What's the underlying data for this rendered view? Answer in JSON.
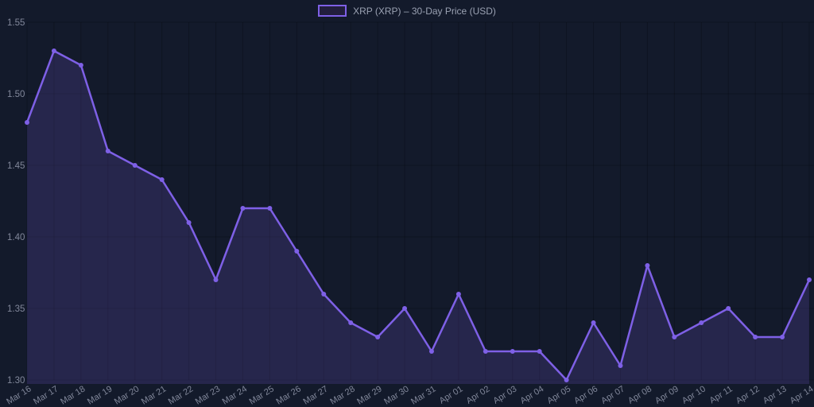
{
  "legend": {
    "label": "XRP (XRP) – 30-Day Price (USD)"
  },
  "colors": {
    "background": "#131a2b",
    "line": "#7e60e6",
    "area_fill": "rgba(126,96,230,0.18)",
    "gridline": "rgba(0,0,0,0.22)",
    "axis_label": "#81879a",
    "legend_text": "#9aa1b2",
    "legend_swatch_fill": "#221e3d"
  },
  "chart_data": {
    "type": "line",
    "title": "XRP (XRP) – 30-Day Price (USD)",
    "legend_position": "top-center",
    "grid": true,
    "area_fill": true,
    "markers": true,
    "x": [
      "Mar 16",
      "Mar 17",
      "Mar 18",
      "Mar 19",
      "Mar 20",
      "Mar 21",
      "Mar 22",
      "Mar 23",
      "Mar 24",
      "Mar 25",
      "Mar 26",
      "Mar 27",
      "Mar 28",
      "Mar 29",
      "Mar 30",
      "Mar 31",
      "Apr 01",
      "Apr 02",
      "Apr 03",
      "Apr 04",
      "Apr 05",
      "Apr 06",
      "Apr 07",
      "Apr 08",
      "Apr 09",
      "Apr 10",
      "Apr 11",
      "Apr 12",
      "Apr 13",
      "Apr 14"
    ],
    "series": [
      {
        "name": "XRP (XRP) – 30-Day Price (USD)",
        "values": [
          1.48,
          1.53,
          1.52,
          1.46,
          1.45,
          1.44,
          1.41,
          1.37,
          1.42,
          1.42,
          1.39,
          1.36,
          1.34,
          1.33,
          1.35,
          1.32,
          1.36,
          1.32,
          1.32,
          1.32,
          1.3,
          1.34,
          1.31,
          1.38,
          1.33,
          1.34,
          1.35,
          1.33,
          1.33,
          1.37
        ]
      }
    ],
    "xlabel": "",
    "ylabel": "",
    "ylim": [
      1.3,
      1.55
    ],
    "yticks": [
      1.55,
      1.5,
      1.45,
      1.4,
      1.35,
      1.3
    ]
  }
}
